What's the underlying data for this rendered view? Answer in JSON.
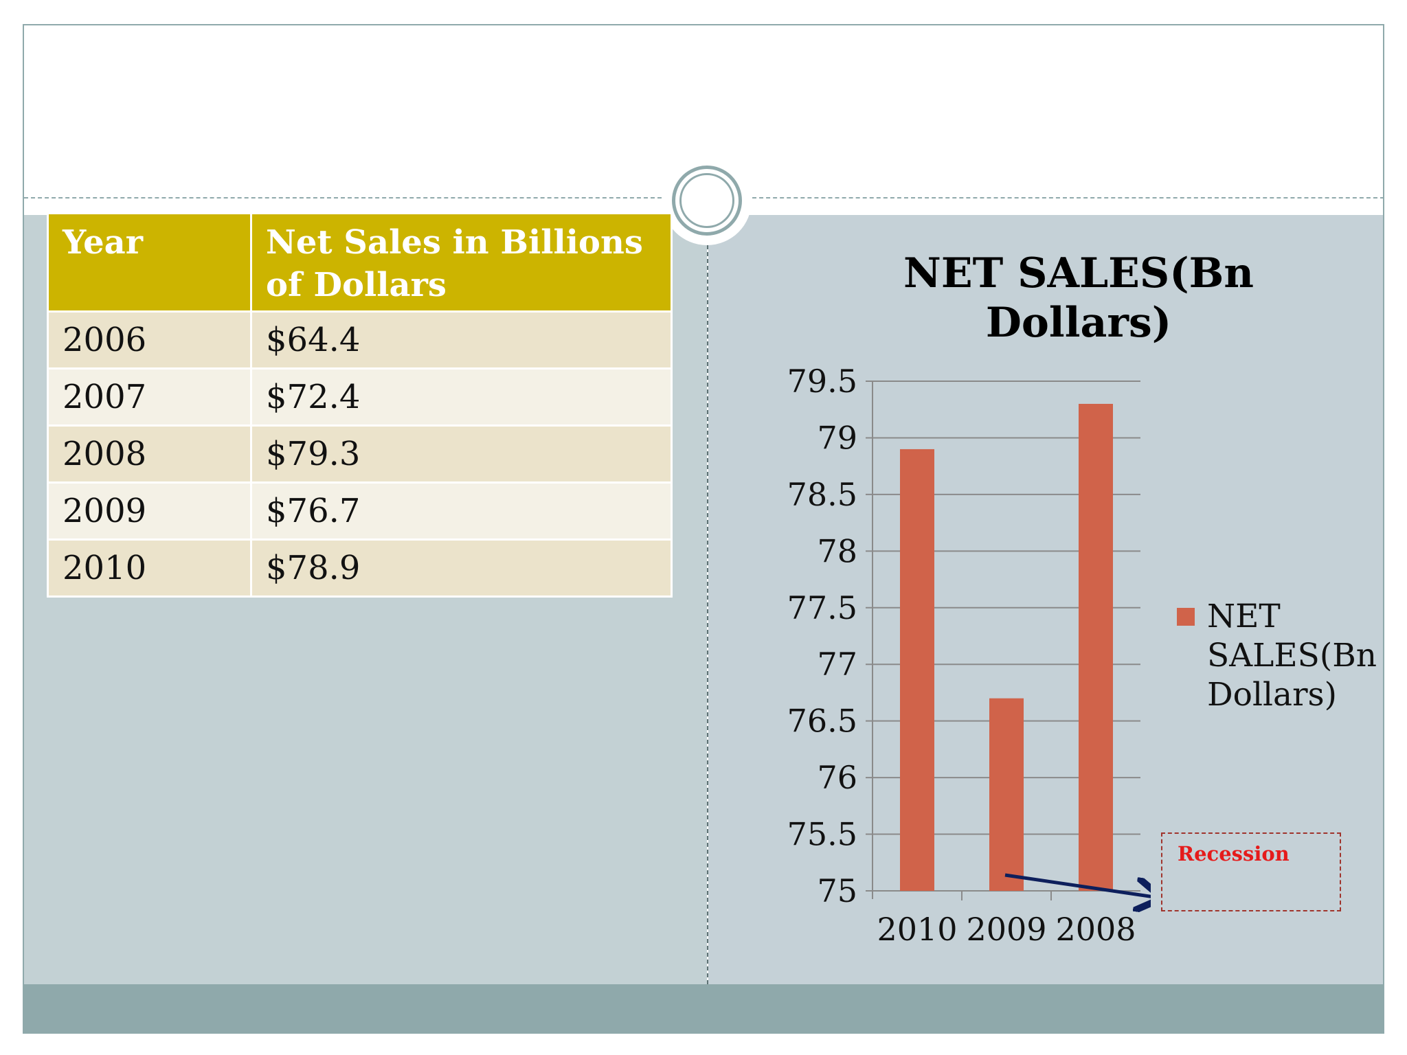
{
  "table": {
    "headers": [
      "Year",
      "Net Sales in Billions of  Dollars"
    ],
    "rows": [
      [
        "2006",
        "$64.4"
      ],
      [
        "2007",
        "$72.4"
      ],
      [
        "2008",
        "$79.3"
      ],
      [
        "2009",
        "$76.7"
      ],
      [
        "2010",
        "$78.9"
      ]
    ]
  },
  "chart_data": {
    "type": "bar",
    "title": "NET SALES(Bn Dollars)",
    "categories": [
      "2010",
      "2009",
      "2008"
    ],
    "series": [
      {
        "name": "NET SALES(Bn Dollars)",
        "values": [
          78.9,
          76.7,
          79.3
        ],
        "color": "#d0634a"
      }
    ],
    "ylim": [
      75,
      79.5
    ],
    "yticks": [
      "75",
      "75.5",
      "76",
      "76.5",
      "77",
      "77.5",
      "78",
      "78.5",
      "79",
      "79.5"
    ],
    "grid": true,
    "legend": "right",
    "annotation": "Recession"
  },
  "colors": {
    "header_fill": "#ccb400",
    "bar": "#d0634a",
    "arrow": "#0d1f5c",
    "recession_text": "#e51b1b"
  }
}
